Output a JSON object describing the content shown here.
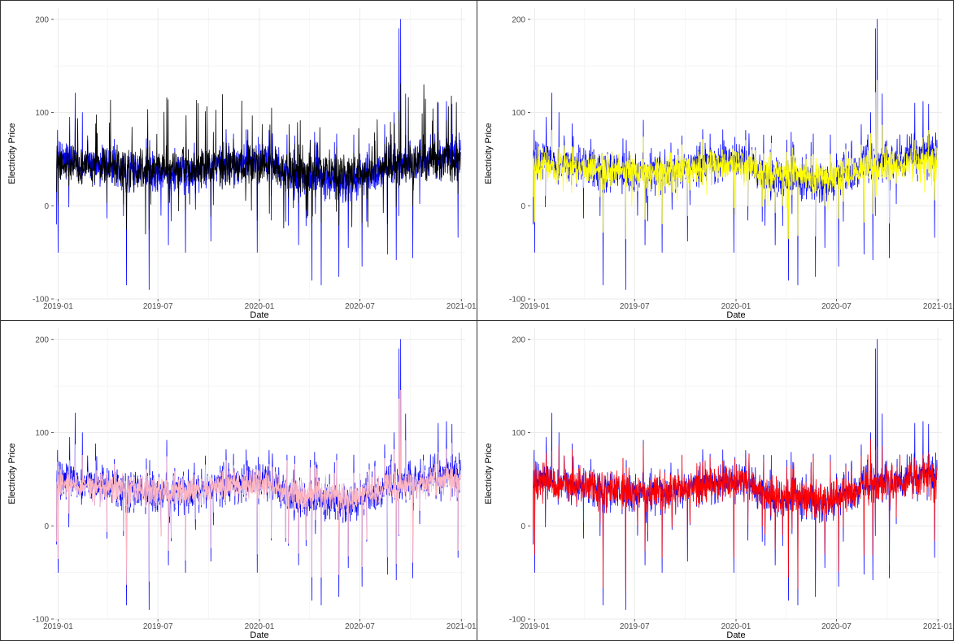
{
  "chart_data": [
    {
      "type": "line",
      "title": "",
      "xlabel": "Date",
      "ylabel": "Electricity Price",
      "x_range": [
        "2018-12-24",
        "2021-01-08"
      ],
      "ylim": [
        -100,
        212
      ],
      "y_ticks": [
        -100,
        0,
        100,
        200
      ],
      "y_tick_labels": [
        "-100",
        "0",
        "100",
        "200"
      ],
      "x_ticks": [
        "2019-01-01",
        "2019-07-01",
        "2020-01-01",
        "2020-07-01",
        "2021-01-01"
      ],
      "x_tick_labels": [
        "2019-01",
        "2019-07",
        "2020-01",
        "2020-07",
        "2021-01"
      ],
      "grid": true,
      "legend": "none",
      "series": [
        {
          "color": "#0000ff",
          "role": "actual"
        },
        {
          "color": "#000000",
          "role": "predicted"
        }
      ]
    },
    {
      "type": "line",
      "title": "",
      "xlabel": "Date",
      "ylabel": "Electricity Price",
      "x_range": [
        "2018-12-24",
        "2021-01-08"
      ],
      "ylim": [
        -100,
        212
      ],
      "y_ticks": [
        -100,
        0,
        100,
        200
      ],
      "y_tick_labels": [
        "-100",
        "0",
        "100",
        "200"
      ],
      "x_ticks": [
        "2019-01-01",
        "2019-07-01",
        "2020-01-01",
        "2020-07-01",
        "2021-01-01"
      ],
      "x_tick_labels": [
        "2019-01",
        "2019-07",
        "2020-01",
        "2020-07",
        "2021-01"
      ],
      "grid": true,
      "legend": "none",
      "series": [
        {
          "color": "#0000ff",
          "role": "actual"
        },
        {
          "color": "#ffff00",
          "role": "predicted"
        }
      ]
    },
    {
      "type": "line",
      "title": "",
      "xlabel": "Date",
      "ylabel": "Electricity Price",
      "x_range": [
        "2018-12-24",
        "2021-01-08"
      ],
      "ylim": [
        -100,
        212
      ],
      "y_ticks": [
        -100,
        0,
        100,
        200
      ],
      "y_tick_labels": [
        "-100",
        "0",
        "100",
        "200"
      ],
      "x_ticks": [
        "2019-01-01",
        "2019-07-01",
        "2020-01-01",
        "2020-07-01",
        "2021-01-01"
      ],
      "x_tick_labels": [
        "2019-01",
        "2019-07",
        "2020-01",
        "2020-07",
        "2021-01"
      ],
      "grid": true,
      "legend": "none",
      "series": [
        {
          "color": "#0000ff",
          "role": "actual"
        },
        {
          "color": "#ffb6c1",
          "role": "predicted"
        }
      ]
    },
    {
      "type": "line",
      "title": "",
      "xlabel": "Date",
      "ylabel": "Electricity Price",
      "x_range": [
        "2018-12-24",
        "2021-01-08"
      ],
      "ylim": [
        -100,
        212
      ],
      "y_ticks": [
        -100,
        0,
        100,
        200
      ],
      "y_tick_labels": [
        "-100",
        "0",
        "100",
        "200"
      ],
      "x_ticks": [
        "2019-01-01",
        "2019-07-01",
        "2020-01-01",
        "2020-07-01",
        "2021-01-01"
      ],
      "x_tick_labels": [
        "2019-01",
        "2019-07",
        "2020-01",
        "2020-07",
        "2021-01"
      ],
      "grid": true,
      "legend": "none",
      "series": [
        {
          "color": "#0000ff",
          "role": "actual"
        },
        {
          "color": "#ff0000",
          "role": "predicted"
        }
      ]
    }
  ],
  "actual_features": {
    "base_level": 40,
    "spikes": [
      {
        "date": "2019-01-05",
        "value": 68
      },
      {
        "date": "2019-01-22",
        "value": 95
      },
      {
        "date": "2019-02-01",
        "value": 121
      },
      {
        "date": "2019-02-14",
        "value": 100
      },
      {
        "date": "2019-03-10",
        "value": 88
      },
      {
        "date": "2019-06-10",
        "value": 72
      },
      {
        "date": "2019-08-20",
        "value": 73
      },
      {
        "date": "2019-09-25",
        "value": 75
      },
      {
        "date": "2019-11-15",
        "value": 77
      },
      {
        "date": "2019-12-10",
        "value": 70
      },
      {
        "date": "2020-02-20",
        "value": 76
      },
      {
        "date": "2020-03-05",
        "value": 75
      },
      {
        "date": "2020-04-10",
        "value": 79
      },
      {
        "date": "2020-05-20",
        "value": 77
      },
      {
        "date": "2020-06-20",
        "value": 76
      },
      {
        "date": "2020-08-15",
        "value": 87
      },
      {
        "date": "2020-09-01",
        "value": 100
      },
      {
        "date": "2020-09-10",
        "value": 190
      },
      {
        "date": "2020-09-13",
        "value": 200
      },
      {
        "date": "2020-09-22",
        "value": 120
      },
      {
        "date": "2020-10-05",
        "value": 100
      },
      {
        "date": "2020-11-20",
        "value": 110
      },
      {
        "date": "2020-12-05",
        "value": 112
      },
      {
        "date": "2020-12-15",
        "value": 109
      }
    ],
    "dips": [
      {
        "date": "2018-12-29",
        "value": -20
      },
      {
        "date": "2019-01-01",
        "value": -50
      },
      {
        "date": "2019-05-05",
        "value": -85
      },
      {
        "date": "2019-06-15",
        "value": -90
      },
      {
        "date": "2019-07-20",
        "value": -42
      },
      {
        "date": "2019-08-20",
        "value": -50
      },
      {
        "date": "2019-10-05",
        "value": -38
      },
      {
        "date": "2019-12-28",
        "value": -50
      },
      {
        "date": "2020-03-12",
        "value": -42
      },
      {
        "date": "2020-04-05",
        "value": -80
      },
      {
        "date": "2020-04-22",
        "value": -85
      },
      {
        "date": "2020-05-24",
        "value": -76
      },
      {
        "date": "2020-06-10",
        "value": -45
      },
      {
        "date": "2020-07-05",
        "value": -65
      },
      {
        "date": "2020-08-20",
        "value": -52
      },
      {
        "date": "2020-09-05",
        "value": -58
      },
      {
        "date": "2020-10-05",
        "value": -56
      },
      {
        "date": "2020-12-26",
        "value": -34
      }
    ]
  }
}
